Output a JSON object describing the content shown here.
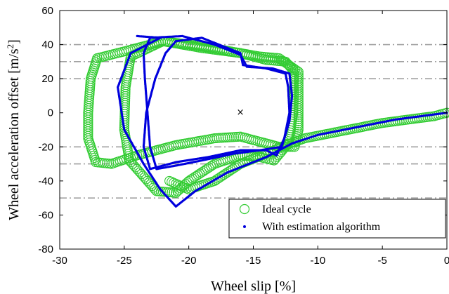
{
  "chart_data": {
    "type": "scatter",
    "xlabel": "Wheel slip [%]",
    "ylabel": "Wheel acceleration offset [m/s²]",
    "ylabel_main": "Wheel acceleration offset [m/s",
    "ylabel_sup": "2",
    "ylabel_close": "]",
    "xlim": [
      -30,
      0
    ],
    "ylim": [
      -80,
      60
    ],
    "xticks": [
      -30,
      -25,
      -20,
      -15,
      -10,
      -5,
      0
    ],
    "yticks": [
      -80,
      -60,
      -40,
      -20,
      0,
      20,
      40,
      60
    ],
    "xtick_labels": [
      "-30",
      "-25",
      "-20",
      "-15",
      "-10",
      "-5",
      "0"
    ],
    "ytick_labels": [
      "-80",
      "-60",
      "-40",
      "-20",
      "0",
      "20",
      "40",
      "60"
    ],
    "grid": false,
    "threshold_lines": [
      40,
      30,
      20,
      -20,
      -30,
      -50
    ],
    "threshold_color": "#a0a0a0",
    "center_marker": {
      "x": -16,
      "y": 0,
      "symbol": "×"
    },
    "legend_position": "bottom-right",
    "series": [
      {
        "name": "Ideal cycle",
        "marker": "open-circle",
        "color": "#33cc33",
        "loops": [
          {
            "outline": [
              [
                -27.1,
                32
              ],
              [
                -25,
                36
              ],
              [
                -22,
                42
              ],
              [
                -19,
                39
              ],
              [
                -16,
                35
              ],
              [
                -14.5,
                33
              ],
              [
                -13,
                32
              ],
              [
                -11.5,
                24
              ],
              [
                -11.5,
                0
              ],
              [
                -11.5,
                -10
              ],
              [
                -11.8,
                -20
              ],
              [
                -13,
                -20
              ],
              [
                -16,
                -14
              ],
              [
                -18,
                -15
              ],
              [
                -21,
                -19
              ],
              [
                -24,
                -25
              ],
              [
                -26,
                -30
              ],
              [
                -27.2,
                -29
              ],
              [
                -27.8,
                -15
              ],
              [
                -27.8,
                0
              ],
              [
                -27.6,
                20
              ],
              [
                -27.1,
                32
              ]
            ]
          },
          {
            "outline": [
              [
                -24.5,
                33
              ],
              [
                -22,
                42
              ],
              [
                -19,
                38
              ],
              [
                -16,
                35
              ],
              [
                -14,
                31
              ],
              [
                -12.5,
                30
              ],
              [
                -11.8,
                24
              ],
              [
                -11.9,
                0
              ],
              [
                -12.3,
                -18
              ],
              [
                -13.4,
                -28
              ],
              [
                -14.5,
                -26
              ],
              [
                -16,
                -25
              ],
              [
                -18,
                -30
              ],
              [
                -20,
                -40
              ],
              [
                -21,
                -47
              ],
              [
                -22.5,
                -46
              ],
              [
                -24.6,
                -28
              ],
              [
                -25,
                -10
              ],
              [
                -24.9,
                15
              ],
              [
                -24.5,
                33
              ]
            ]
          },
          {
            "outline": [
              [
                -21.5,
                -40
              ],
              [
                -20,
                -45
              ],
              [
                -18,
                -40
              ],
              [
                -16,
                -30
              ],
              [
                -14,
                -24
              ],
              [
                -12.5,
                -19
              ],
              [
                -11,
                -15
              ],
              [
                -9,
                -12
              ],
              [
                -7,
                -9
              ],
              [
                -5,
                -6
              ],
              [
                -3,
                -4
              ],
              [
                -1,
                -2
              ],
              [
                0,
                0
              ]
            ]
          }
        ]
      },
      {
        "name": "With estimation algorithm",
        "marker": "dot",
        "color": "#0000dd",
        "loops": [
          {
            "outline": [
              [
                -21,
                42
              ],
              [
                -19,
                44
              ],
              [
                -16,
                35
              ],
              [
                -15.8,
                28
              ],
              [
                -14,
                26
              ],
              [
                -12.5,
                23
              ],
              [
                -12.3,
                15
              ],
              [
                -12.2,
                0
              ],
              [
                -12.6,
                -15
              ],
              [
                -13.2,
                -25
              ],
              [
                -14,
                -22
              ],
              [
                -16,
                -22
              ],
              [
                -18.5,
                -26
              ],
              [
                -21,
                -29
              ],
              [
                -23,
                -33
              ],
              [
                -23.5,
                -20
              ],
              [
                -23.3,
                0
              ],
              [
                -22.6,
                20
              ],
              [
                -21.8,
                35
              ],
              [
                -21,
                42
              ]
            ]
          },
          {
            "outline": [
              [
                -23,
                44
              ],
              [
                -20.5,
                45
              ],
              [
                -18,
                40
              ],
              [
                -16,
                34
              ],
              [
                -15.5,
                27
              ],
              [
                -13.5,
                26
              ],
              [
                -12.2,
                23
              ],
              [
                -12,
                10
              ],
              [
                -12.2,
                -5
              ],
              [
                -12.8,
                -20
              ],
              [
                -14.5,
                -22
              ],
              [
                -16.5,
                -24
              ],
              [
                -19,
                -28
              ],
              [
                -21,
                -31
              ],
              [
                -22.5,
                -33
              ],
              [
                -23,
                -20
              ],
              [
                -23.2,
                0
              ],
              [
                -23.4,
                20
              ],
              [
                -23.5,
                35
              ],
              [
                -23,
                44
              ]
            ]
          },
          {
            "outline": [
              [
                -24,
                45
              ],
              [
                -22.2,
                44
              ],
              [
                -24.5,
                35
              ],
              [
                -25.5,
                15
              ],
              [
                -25,
                -10
              ],
              [
                -23.5,
                -30
              ],
              [
                -22.2,
                -45
              ],
              [
                -21,
                -55
              ],
              [
                -19.5,
                -46
              ],
              [
                -17,
                -35
              ],
              [
                -14,
                -26
              ],
              [
                -12,
                -18
              ],
              [
                -10,
                -13
              ],
              [
                -8,
                -10
              ],
              [
                -6,
                -7
              ],
              [
                -4,
                -4
              ],
              [
                -2,
                -2
              ],
              [
                0,
                0
              ]
            ]
          }
        ]
      }
    ]
  }
}
